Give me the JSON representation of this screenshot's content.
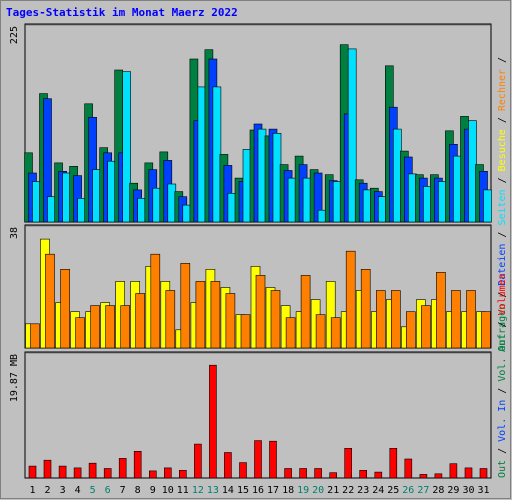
{
  "chart_data": {
    "type": "bar",
    "title": "Tages-Statistik im Monat Maerz 2022",
    "categories": [
      "1",
      "2",
      "3",
      "4",
      "5",
      "6",
      "7",
      "8",
      "9",
      "10",
      "11",
      "12",
      "13",
      "14",
      "15",
      "16",
      "17",
      "18",
      "19",
      "20",
      "21",
      "22",
      "23",
      "24",
      "25",
      "26",
      "27",
      "28",
      "29",
      "30",
      "31"
    ],
    "weekend_days": [
      "5",
      "6",
      "12",
      "13",
      "19",
      "20",
      "26",
      "27"
    ],
    "panels": [
      {
        "name": "hits",
        "ymax_label": "225",
        "ymax": 225,
        "series": [
          {
            "name": "Anfragen",
            "color": "#008040",
            "values": [
              82,
              152,
              70,
              66,
              140,
              88,
              180,
              46,
              70,
              83,
              36,
              193,
              204,
              80,
              52,
              109,
              102,
              68,
              78,
              62,
              56,
              210,
              50,
              40,
              185,
              84,
              56,
              56,
              108,
              125,
              68
            ]
          },
          {
            "name": "Dateien",
            "color": "#0040ff",
            "values": [
              58,
              146,
              60,
              55,
              124,
              82,
              82,
              38,
              62,
              73,
              30,
              120,
              193,
              67,
              48,
              116,
              110,
              61,
              68,
              58,
              49,
              128,
              46,
              36,
              136,
              77,
              52,
              52,
              92,
              110,
              60
            ]
          },
          {
            "name": "Seiten",
            "color": "#00e0ff",
            "values": [
              48,
              30,
              58,
              28,
              62,
              72,
              178,
              28,
              40,
              45,
              20,
              160,
              160,
              34,
              86,
              110,
              105,
              52,
              52,
              14,
              48,
              205,
              38,
              30,
              110,
              57,
              42,
              48,
              78,
              120,
              38
            ]
          }
        ]
      },
      {
        "name": "visits",
        "ymax_label": "38",
        "ymax": 38,
        "series": [
          {
            "name": "Besuche",
            "color": "#ffff00",
            "values": [
              8,
              36,
              15,
              12,
              12,
              15,
              22,
              22,
              27,
              22,
              6,
              15,
              26,
              20,
              11,
              27,
              20,
              14,
              12,
              16,
              22,
              12,
              19,
              12,
              16,
              7,
              16,
              16,
              12,
              12,
              12
            ]
          },
          {
            "name": "Rechner",
            "color": "#ff8000",
            "values": [
              8,
              31,
              26,
              10,
              14,
              14,
              14,
              18,
              31,
              19,
              28,
              22,
              22,
              18,
              11,
              24,
              19,
              10,
              24,
              11,
              10,
              32,
              26,
              19,
              19,
              12,
              14,
              25,
              19,
              19,
              12
            ]
          }
        ]
      },
      {
        "name": "volume",
        "ymax_label": "19.87 MB",
        "ymax": 19.87,
        "series": [
          {
            "name": "Volumen",
            "color": "#ff0000",
            "values": [
              2.0,
              3.0,
              2.0,
              1.7,
              2.5,
              1.6,
              3.3,
              4.5,
              1.2,
              1.7,
              1.3,
              5.7,
              19.0,
              4.3,
              2.6,
              6.3,
              6.2,
              1.6,
              1.6,
              1.6,
              0.9,
              5.0,
              1.3,
              1.0,
              5.0,
              3.2,
              0.6,
              0.7,
              2.4,
              1.7,
              1.6
            ]
          }
        ]
      }
    ]
  },
  "right_legend": {
    "top": [
      "Anfragen",
      "/",
      "Dateien",
      "/",
      "Seiten",
      "/",
      "Besuche",
      "/",
      "Rechner",
      "/"
    ],
    "bottom": [
      "Out",
      "/",
      "Vol. In",
      "/",
      "Vol. Out",
      "/",
      "Volumen"
    ],
    "colors": {
      "Anfragen": "#008040",
      "Dateien": "#0040ff",
      "Seiten": "#00e0ff",
      "Besuche": "#ffff00",
      "Rechner": "#ff8000",
      "Out": "#008040",
      "Vol. In": "#0040ff",
      "Vol. Out": "#008040",
      "Volumen": "#ff0000",
      "sep": "#000000"
    }
  },
  "colors": {
    "title": "#0000ff",
    "weekday": "#000000",
    "weekend": "#00806b",
    "bg": "#c0c0c0",
    "plot": "#c0c0c0"
  }
}
